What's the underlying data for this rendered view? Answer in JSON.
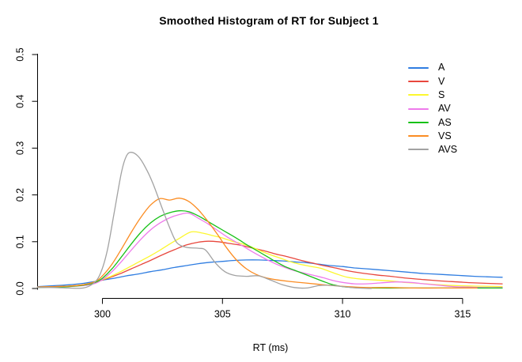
{
  "window": {
    "title": "Smoothed Histogram of RT for Subject 1"
  },
  "colors": {
    "background": "#ffffff",
    "axis": "#000000",
    "text": "#000000"
  },
  "chart_data": {
    "type": "line",
    "title": "Smoothed Histogram of RT for Subject 1",
    "xlabel": "RT (ms)",
    "ylabel": "",
    "xlim": [
      297.3,
      316.65
    ],
    "ylim": [
      0,
      0.5
    ],
    "x_ticks": [
      300,
      305,
      310,
      315
    ],
    "y_ticks": [
      0.0,
      0.1,
      0.2,
      0.3,
      0.4,
      0.5
    ],
    "grid": false,
    "legend_position": "top-right",
    "legend_box": false,
    "series": [
      {
        "name": "A",
        "color": "#2F7DE1",
        "points": [
          [
            297.3,
            0.004
          ],
          [
            298,
            0.006
          ],
          [
            298.6,
            0.008
          ],
          [
            299.2,
            0.011
          ],
          [
            299.7,
            0.015
          ],
          [
            300,
            0.018
          ],
          [
            300.5,
            0.022
          ],
          [
            301,
            0.027
          ],
          [
            301.5,
            0.031
          ],
          [
            302,
            0.036
          ],
          [
            302.5,
            0.04
          ],
          [
            303,
            0.045
          ],
          [
            303.5,
            0.049
          ],
          [
            304,
            0.053
          ],
          [
            304.5,
            0.056
          ],
          [
            305,
            0.058
          ],
          [
            305.5,
            0.06
          ],
          [
            306,
            0.061
          ],
          [
            306.5,
            0.061
          ],
          [
            307,
            0.06
          ],
          [
            307.5,
            0.059
          ],
          [
            308,
            0.057
          ],
          [
            308.5,
            0.055
          ],
          [
            309,
            0.052
          ],
          [
            309.5,
            0.049
          ],
          [
            310,
            0.047
          ],
          [
            310.5,
            0.044
          ],
          [
            311,
            0.042
          ],
          [
            311.5,
            0.04
          ],
          [
            312,
            0.038
          ],
          [
            312.7,
            0.035
          ],
          [
            313.4,
            0.032
          ],
          [
            314.1,
            0.03
          ],
          [
            314.8,
            0.028
          ],
          [
            315.5,
            0.026
          ],
          [
            316,
            0.025
          ],
          [
            316.65,
            0.024
          ]
        ]
      },
      {
        "name": "V",
        "color": "#E8473D",
        "points": [
          [
            297.3,
            0.003
          ],
          [
            298,
            0.004
          ],
          [
            298.6,
            0.005
          ],
          [
            299.2,
            0.008
          ],
          [
            299.7,
            0.013
          ],
          [
            300,
            0.018
          ],
          [
            300.4,
            0.025
          ],
          [
            300.8,
            0.033
          ],
          [
            301.2,
            0.042
          ],
          [
            301.6,
            0.051
          ],
          [
            302,
            0.06
          ],
          [
            302.5,
            0.072
          ],
          [
            303,
            0.083
          ],
          [
            303.5,
            0.093
          ],
          [
            304,
            0.099
          ],
          [
            304.4,
            0.101
          ],
          [
            304.8,
            0.1
          ],
          [
            305.2,
            0.097
          ],
          [
            305.7,
            0.093
          ],
          [
            306.2,
            0.087
          ],
          [
            306.7,
            0.081
          ],
          [
            307.2,
            0.074
          ],
          [
            307.7,
            0.068
          ],
          [
            308.2,
            0.061
          ],
          [
            308.7,
            0.055
          ],
          [
            309.2,
            0.049
          ],
          [
            309.7,
            0.044
          ],
          [
            310.2,
            0.038
          ],
          [
            310.8,
            0.033
          ],
          [
            311.4,
            0.029
          ],
          [
            312,
            0.026
          ],
          [
            312.7,
            0.022
          ],
          [
            313.4,
            0.019
          ],
          [
            314.1,
            0.016
          ],
          [
            314.8,
            0.014
          ],
          [
            315.5,
            0.012
          ],
          [
            316.65,
            0.01
          ]
        ]
      },
      {
        "name": "S",
        "color": "#FCF72E",
        "points": [
          [
            297.3,
            0.003
          ],
          [
            298,
            0.004
          ],
          [
            298.6,
            0.005
          ],
          [
            299.2,
            0.008
          ],
          [
            299.7,
            0.014
          ],
          [
            300,
            0.019
          ],
          [
            300.4,
            0.027
          ],
          [
            300.8,
            0.037
          ],
          [
            301.2,
            0.048
          ],
          [
            301.6,
            0.059
          ],
          [
            302,
            0.07
          ],
          [
            302.4,
            0.082
          ],
          [
            302.8,
            0.095
          ],
          [
            303.2,
            0.107
          ],
          [
            303.7,
            0.121
          ],
          [
            304.2,
            0.118
          ],
          [
            304.6,
            0.113
          ],
          [
            305,
            0.108
          ],
          [
            305.4,
            0.101
          ],
          [
            305.8,
            0.096
          ],
          [
            306.2,
            0.089
          ],
          [
            306.6,
            0.08
          ],
          [
            307,
            0.072
          ],
          [
            307.4,
            0.065
          ],
          [
            307.9,
            0.056
          ],
          [
            308.3,
            0.051
          ],
          [
            308.7,
            0.047
          ],
          [
            309.1,
            0.043
          ],
          [
            309.7,
            0.032
          ],
          [
            310.2,
            0.024
          ],
          [
            310.8,
            0.02
          ],
          [
            311.4,
            0.018
          ],
          [
            312,
            0.016
          ],
          [
            312.6,
            0.013
          ],
          [
            313.2,
            0.011
          ],
          [
            314,
            0.008
          ],
          [
            314.8,
            0.006
          ],
          [
            315.6,
            0.005
          ],
          [
            316.65,
            0.004
          ]
        ]
      },
      {
        "name": "AV",
        "color": "#EE7AEB",
        "points": [
          [
            297.3,
            0.002
          ],
          [
            298,
            0.003
          ],
          [
            298.6,
            0.004
          ],
          [
            299.2,
            0.006
          ],
          [
            299.7,
            0.011
          ],
          [
            300,
            0.019
          ],
          [
            300.4,
            0.036
          ],
          [
            300.8,
            0.058
          ],
          [
            301.2,
            0.082
          ],
          [
            301.6,
            0.105
          ],
          [
            302,
            0.125
          ],
          [
            302.4,
            0.14
          ],
          [
            302.8,
            0.151
          ],
          [
            303.2,
            0.158
          ],
          [
            303.6,
            0.161
          ],
          [
            304,
            0.15
          ],
          [
            304.4,
            0.138
          ],
          [
            304.8,
            0.124
          ],
          [
            305.2,
            0.11
          ],
          [
            305.6,
            0.098
          ],
          [
            306,
            0.086
          ],
          [
            306.4,
            0.074
          ],
          [
            306.8,
            0.063
          ],
          [
            307.2,
            0.053
          ],
          [
            307.6,
            0.045
          ],
          [
            308,
            0.038
          ],
          [
            308.4,
            0.033
          ],
          [
            308.8,
            0.028
          ],
          [
            309.2,
            0.023
          ],
          [
            309.6,
            0.017
          ],
          [
            310,
            0.013
          ],
          [
            310.5,
            0.01
          ],
          [
            311,
            0.01
          ],
          [
            311.6,
            0.012
          ],
          [
            312.2,
            0.014
          ],
          [
            312.8,
            0.013
          ],
          [
            313.4,
            0.01
          ],
          [
            314,
            0.007
          ],
          [
            314.6,
            0.004
          ],
          [
            315.2,
            0.003
          ],
          [
            316,
            0.002
          ],
          [
            316.65,
            0.002
          ]
        ]
      },
      {
        "name": "AS",
        "color": "#16C116",
        "points": [
          [
            297.3,
            0.002
          ],
          [
            298,
            0.003
          ],
          [
            298.6,
            0.004
          ],
          [
            299.2,
            0.007
          ],
          [
            299.7,
            0.013
          ],
          [
            300,
            0.022
          ],
          [
            300.4,
            0.042
          ],
          [
            300.8,
            0.068
          ],
          [
            301.2,
            0.095
          ],
          [
            301.6,
            0.12
          ],
          [
            302,
            0.14
          ],
          [
            302.4,
            0.154
          ],
          [
            302.8,
            0.162
          ],
          [
            303.2,
            0.166
          ],
          [
            303.6,
            0.164
          ],
          [
            304,
            0.155
          ],
          [
            304.4,
            0.143
          ],
          [
            304.8,
            0.131
          ],
          [
            305.2,
            0.119
          ],
          [
            305.6,
            0.107
          ],
          [
            306,
            0.094
          ],
          [
            306.4,
            0.082
          ],
          [
            306.8,
            0.07
          ],
          [
            307.2,
            0.058
          ],
          [
            307.6,
            0.047
          ],
          [
            308,
            0.039
          ],
          [
            308.4,
            0.031
          ],
          [
            308.8,
            0.023
          ],
          [
            309.2,
            0.015
          ],
          [
            309.6,
            0.008
          ],
          [
            310,
            0.004
          ],
          [
            310.5,
            0.002
          ],
          [
            311.2,
            0.001
          ],
          [
            312.4,
            0.001
          ],
          [
            313.6,
            0.001
          ],
          [
            314.8,
            0.001
          ],
          [
            315.8,
            0.001
          ],
          [
            316.65,
            0.001
          ]
        ]
      },
      {
        "name": "VS",
        "color": "#FB8C22",
        "points": [
          [
            297.3,
            0.003
          ],
          [
            298,
            0.004
          ],
          [
            298.6,
            0.005
          ],
          [
            299.2,
            0.008
          ],
          [
            299.7,
            0.015
          ],
          [
            300,
            0.027
          ],
          [
            300.4,
            0.052
          ],
          [
            300.8,
            0.085
          ],
          [
            301.2,
            0.12
          ],
          [
            301.6,
            0.152
          ],
          [
            302,
            0.178
          ],
          [
            302.4,
            0.192
          ],
          [
            302.8,
            0.189
          ],
          [
            303.2,
            0.193
          ],
          [
            303.6,
            0.186
          ],
          [
            304,
            0.168
          ],
          [
            304.4,
            0.143
          ],
          [
            304.8,
            0.115
          ],
          [
            305.2,
            0.085
          ],
          [
            305.6,
            0.06
          ],
          [
            306,
            0.042
          ],
          [
            306.4,
            0.03
          ],
          [
            306.8,
            0.023
          ],
          [
            307.2,
            0.019
          ],
          [
            307.8,
            0.015
          ],
          [
            308.4,
            0.012
          ],
          [
            309,
            0.009
          ],
          [
            309.6,
            0.006
          ],
          [
            310.2,
            0.004
          ],
          [
            311,
            0.002
          ],
          [
            312,
            0.002
          ],
          [
            313,
            0.001
          ],
          [
            314,
            0.001
          ],
          [
            315,
            0.001
          ],
          [
            315.6,
            0.001
          ]
        ]
      },
      {
        "name": "AVS",
        "color": "#A2A2A2",
        "points": [
          [
            297.3,
            0.002
          ],
          [
            298,
            0.002
          ],
          [
            298.6,
            0.001
          ],
          [
            299.2,
            0.001
          ],
          [
            299.6,
            0.01
          ],
          [
            299.9,
            0.03
          ],
          [
            300.2,
            0.08
          ],
          [
            300.5,
            0.165
          ],
          [
            300.8,
            0.25
          ],
          [
            301,
            0.283
          ],
          [
            301.2,
            0.291
          ],
          [
            301.5,
            0.282
          ],
          [
            301.8,
            0.258
          ],
          [
            302.1,
            0.225
          ],
          [
            302.5,
            0.17
          ],
          [
            302.8,
            0.13
          ],
          [
            303.1,
            0.098
          ],
          [
            303.5,
            0.088
          ],
          [
            304,
            0.086
          ],
          [
            304.3,
            0.082
          ],
          [
            304.7,
            0.055
          ],
          [
            305.1,
            0.036
          ],
          [
            305.5,
            0.028
          ],
          [
            306,
            0.026
          ],
          [
            306.5,
            0.027
          ],
          [
            307,
            0.018
          ],
          [
            307.5,
            0.008
          ],
          [
            308,
            0.002
          ],
          [
            308.5,
            0.001
          ],
          [
            309,
            0.006
          ],
          [
            309.4,
            0.007
          ],
          [
            310,
            0.004
          ],
          [
            310.6,
            0.001
          ],
          [
            311.2,
            0
          ]
        ]
      }
    ]
  }
}
